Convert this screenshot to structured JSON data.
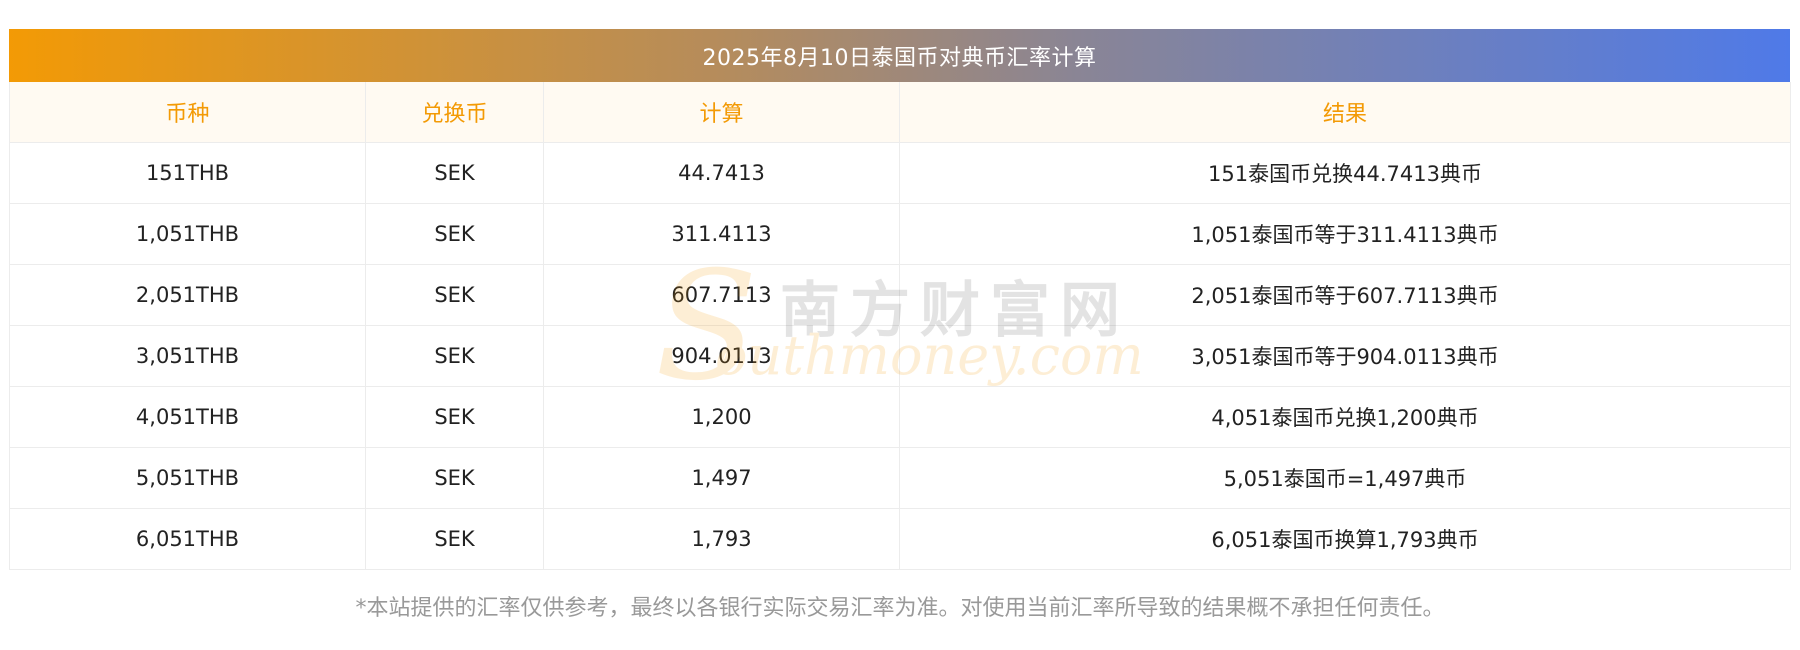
{
  "title": "2025年8月10日泰国币对典币汇率计算",
  "headers": [
    "币种",
    "兑换币",
    "计算",
    "结果"
  ],
  "rows": [
    {
      "currency": "151THB",
      "target": "SEK",
      "calc": "44.7413",
      "result": "151泰国币兑换44.7413典币"
    },
    {
      "currency": "1,051THB",
      "target": "SEK",
      "calc": "311.4113",
      "result": "1,051泰国币等于311.4113典币"
    },
    {
      "currency": "2,051THB",
      "target": "SEK",
      "calc": "607.7113",
      "result": "2,051泰国币等于607.7113典币"
    },
    {
      "currency": "3,051THB",
      "target": "SEK",
      "calc": "904.0113",
      "result": "3,051泰国币等于904.0113典币"
    },
    {
      "currency": "4,051THB",
      "target": "SEK",
      "calc": "1,200",
      "result": "4,051泰国币兑换1,200典币"
    },
    {
      "currency": "5,051THB",
      "target": "SEK",
      "calc": "1,497",
      "result": "5,051泰国币=1,497典币"
    },
    {
      "currency": "6,051THB",
      "target": "SEK",
      "calc": "1,793",
      "result": "6,051泰国币换算1,793典币"
    }
  ],
  "note": "*本站提供的汇率仅供参考，最终以各银行实际交易汇率为准。对使用当前汇率所导致的结果概不承担任何责任。",
  "watermark": {
    "cn": "南方财富网",
    "en": "outhmoney.com",
    "s": "S"
  },
  "colors": {
    "accent": "#f39a05",
    "gradient_end": "#4f7ae8",
    "header_bg": "#fffaf2",
    "note": "#999999"
  }
}
